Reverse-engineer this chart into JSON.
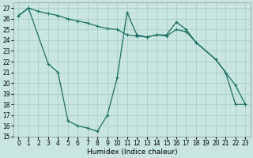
{
  "xlabel": "Humidex (Indice chaleur)",
  "background_color": "#c8e6df",
  "grid_color": "#a8cec8",
  "line_color": "#1a6e65",
  "xlim": [
    -0.5,
    23.5
  ],
  "ylim": [
    15,
    27.5
  ],
  "yticks": [
    15,
    16,
    17,
    18,
    19,
    20,
    21,
    22,
    23,
    24,
    25,
    26,
    27
  ],
  "xticks": [
    0,
    1,
    2,
    3,
    4,
    5,
    6,
    7,
    8,
    9,
    10,
    11,
    12,
    13,
    14,
    15,
    16,
    17,
    18,
    19,
    20,
    21,
    22,
    23
  ],
  "line1_x": [
    0,
    1,
    2,
    3,
    4,
    5,
    6,
    7,
    8,
    9,
    10,
    11,
    12,
    13,
    14,
    15,
    16,
    17,
    18,
    20,
    21,
    22,
    23
  ],
  "line1_y": [
    26.3,
    27.0,
    26.7,
    26.5,
    26.3,
    26.0,
    25.8,
    25.6,
    25.3,
    25.1,
    25.0,
    24.5,
    24.4,
    24.3,
    24.5,
    24.4,
    25.0,
    24.8,
    23.8,
    22.2,
    21.0,
    18.0,
    18.0
  ],
  "line2_x": [
    0,
    1,
    3,
    4,
    5,
    6,
    7,
    8,
    9,
    10,
    11,
    12,
    13,
    14,
    15,
    16,
    17,
    18,
    20,
    21,
    22,
    23
  ],
  "line2_y": [
    26.3,
    27.0,
    21.8,
    21.0,
    16.5,
    16.0,
    15.8,
    15.5,
    17.0,
    20.5,
    26.6,
    24.5,
    24.3,
    24.5,
    24.5,
    25.7,
    25.0,
    23.8,
    22.2,
    21.0,
    19.8,
    18.0
  ]
}
